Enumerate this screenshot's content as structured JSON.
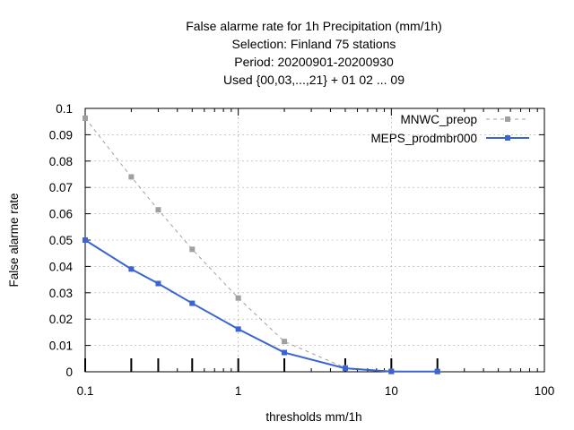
{
  "chart_data": {
    "type": "line",
    "title_lines": [
      "False alarme rate  for 1h Precipitation (mm/1h)",
      "Selection: Finland     75 stations",
      "Period: 20200901-20200930",
      "Used {00,03,...,21} + 01 02 ... 09"
    ],
    "xlabel": "thresholds mm/1h",
    "ylabel": "False alarme rate",
    "x_scale": "log",
    "xlim": [
      0.1,
      100
    ],
    "ylim": [
      0,
      0.1
    ],
    "x_ticks": [
      0.1,
      1,
      10,
      100
    ],
    "x_tick_labels": [
      "0.1",
      "1",
      "10",
      "100"
    ],
    "y_ticks": [
      0,
      0.01,
      0.02,
      0.03,
      0.04,
      0.05,
      0.06,
      0.07,
      0.08,
      0.09,
      0.1
    ],
    "y_tick_labels": [
      "0",
      "0.01",
      "0.02",
      "0.03",
      "0.04",
      "0.05",
      "0.06",
      "0.07",
      "0.08",
      "0.09",
      "0.1"
    ],
    "grid": true,
    "legend_position": "top-right",
    "threshold_markers": [
      0.1,
      0.2,
      0.3,
      0.5,
      1,
      2,
      5,
      10,
      20
    ],
    "series": [
      {
        "name": "MNWC_preop",
        "color": "#a0a0a0",
        "dash": "dashed",
        "x": [
          0.1,
          0.2,
          0.3,
          0.5,
          1,
          2,
          5,
          10,
          20
        ],
        "values": [
          0.0963,
          0.074,
          0.0615,
          0.0465,
          0.028,
          0.0115,
          0.0015,
          0.0002,
          0.0001
        ]
      },
      {
        "name": "MEPS_prodmbr000",
        "color": "#3a63d6",
        "dash": "solid",
        "x": [
          0.1,
          0.2,
          0.3,
          0.5,
          1,
          2,
          5,
          10,
          20
        ],
        "values": [
          0.05,
          0.039,
          0.0335,
          0.026,
          0.0162,
          0.0073,
          0.0013,
          0.0001,
          0.0001
        ]
      }
    ]
  }
}
